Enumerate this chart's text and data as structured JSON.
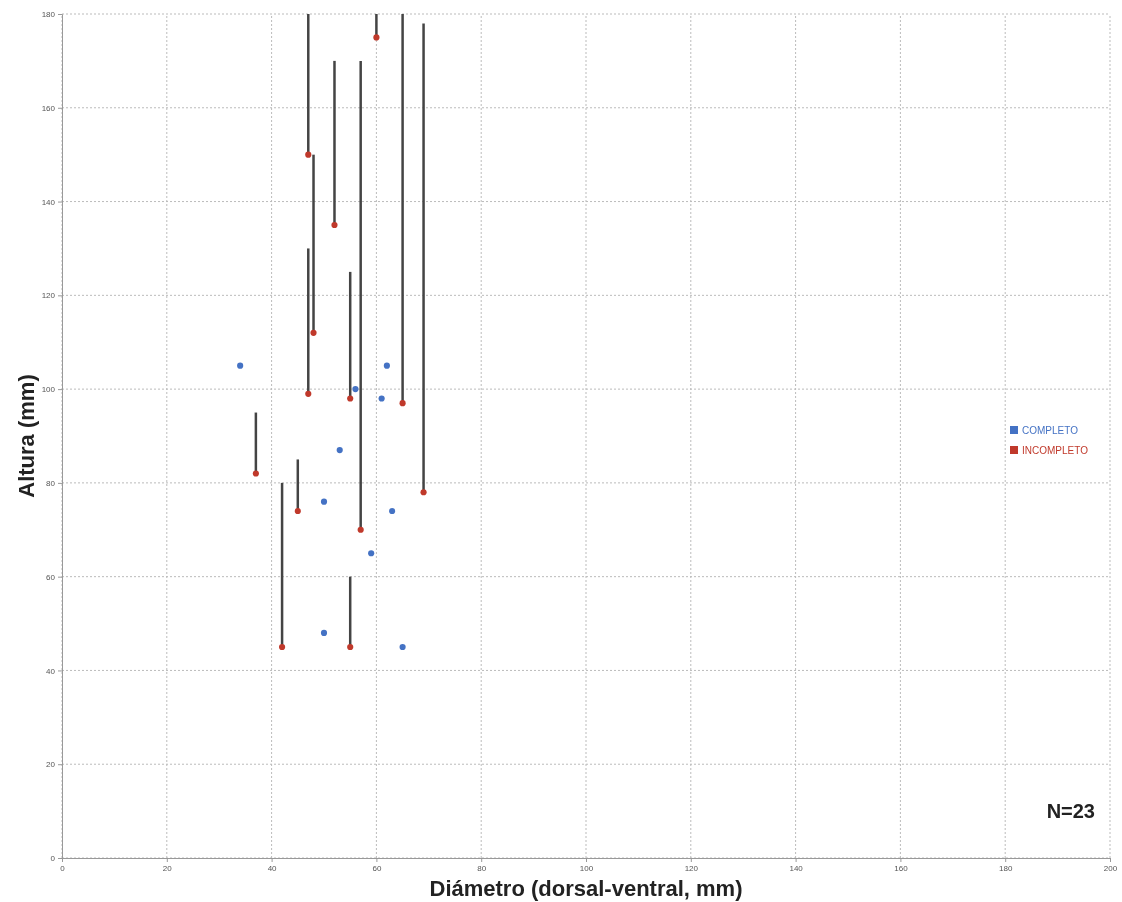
{
  "chart_data": {
    "type": "scatter",
    "xlabel": "Diámetro (dorsal-ventral, mm)",
    "ylabel": "Altura (mm)",
    "xlim": [
      0,
      200
    ],
    "xticks": [
      0,
      20,
      40,
      60,
      80,
      100,
      120,
      140,
      160,
      180,
      200
    ],
    "ylim": [
      0,
      180
    ],
    "yticks": [
      0,
      20,
      40,
      60,
      80,
      100,
      120,
      140,
      160,
      180
    ],
    "grid": true,
    "legend": "right",
    "marker": "circle",
    "annotations": [
      "N=23"
    ],
    "series": [
      {
        "name": "COMPLETO",
        "color": "#4472c4",
        "x": [
          34,
          56,
          62,
          61,
          53,
          50,
          63,
          59,
          50,
          65
        ],
        "values": [
          105,
          100,
          105,
          98,
          87,
          76,
          74,
          65,
          48,
          45
        ]
      },
      {
        "name": "INCOMPLETO",
        "color": "#c0392b",
        "x": [
          37,
          45,
          42,
          47,
          48,
          47,
          52,
          55,
          55,
          57,
          60,
          65,
          69
        ],
        "values": [
          82,
          74,
          45,
          99,
          112,
          150,
          135,
          98,
          45,
          70,
          175,
          97,
          78
        ],
        "errors": [
          [
            82,
            95
          ],
          [
            74,
            85
          ],
          [
            45,
            80
          ],
          [
            99,
            130
          ],
          [
            112,
            150
          ],
          [
            150,
            180
          ],
          [
            135,
            170
          ],
          [
            98,
            125
          ],
          [
            45,
            60
          ],
          [
            70,
            170
          ],
          [
            175,
            180
          ],
          [
            97,
            180
          ],
          [
            78,
            178
          ]
        ]
      }
    ]
  }
}
